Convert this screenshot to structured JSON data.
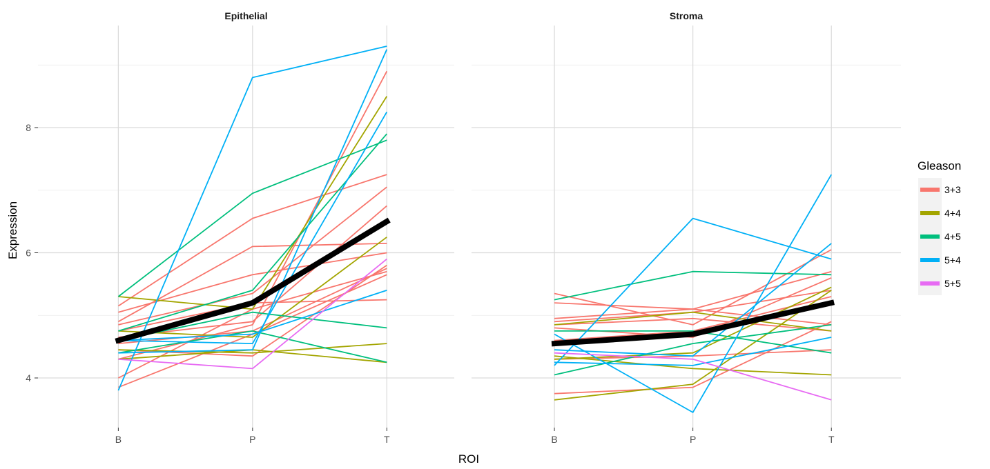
{
  "chart_data": {
    "type": "line",
    "xlabel": "ROI",
    "ylabel": "Expression",
    "categories": [
      "B",
      "P",
      "T"
    ],
    "ylim": [
      3.2,
      9.6
    ],
    "yticks": [
      4,
      6,
      8
    ],
    "grid": true,
    "legend": {
      "title": "Gleason",
      "position": "right",
      "entries": [
        {
          "label": "3+3",
          "color": "#F8766D"
        },
        {
          "label": "4+4",
          "color": "#A3A500"
        },
        {
          "label": "4+5",
          "color": "#00BF7D"
        },
        {
          "label": "5+4",
          "color": "#00B0F6"
        },
        {
          "label": "5+5",
          "color": "#E76BF3"
        }
      ]
    },
    "mean_color": "#000000",
    "facets": [
      {
        "title": "Epithelial",
        "series": [
          {
            "group": "3+3",
            "values": [
              5.15,
              6.55,
              7.25
            ]
          },
          {
            "group": "3+3",
            "values": [
              4.9,
              6.1,
              6.15
            ]
          },
          {
            "group": "3+3",
            "values": [
              5.05,
              5.65,
              6.0
            ]
          },
          {
            "group": "3+3",
            "values": [
              4.85,
              5.35,
              7.05
            ]
          },
          {
            "group": "3+3",
            "values": [
              4.75,
              5.2,
              5.25
            ]
          },
          {
            "group": "3+3",
            "values": [
              4.65,
              4.9,
              6.75
            ]
          },
          {
            "group": "3+3",
            "values": [
              4.55,
              4.75,
              5.75
            ]
          },
          {
            "group": "3+3",
            "values": [
              4.3,
              4.85,
              8.9
            ]
          },
          {
            "group": "3+3",
            "values": [
              4.0,
              5.1,
              5.7
            ]
          },
          {
            "group": "3+3",
            "values": [
              3.85,
              4.7,
              5.65
            ]
          },
          {
            "group": "3+3",
            "values": [
              4.45,
              4.35,
              5.8
            ]
          },
          {
            "group": "4+4",
            "values": [
              5.3,
              5.1,
              8.5
            ]
          },
          {
            "group": "4+4",
            "values": [
              4.75,
              4.65,
              6.25
            ]
          },
          {
            "group": "4+4",
            "values": [
              4.45,
              4.4,
              4.55
            ]
          },
          {
            "group": "4+4",
            "values": [
              4.3,
              4.45,
              4.25
            ]
          },
          {
            "group": "4+5",
            "values": [
              5.3,
              6.95,
              7.8
            ]
          },
          {
            "group": "4+5",
            "values": [
              4.75,
              5.4,
              7.9
            ]
          },
          {
            "group": "4+5",
            "values": [
              4.6,
              5.05,
              4.8
            ]
          },
          {
            "group": "4+5",
            "values": [
              4.4,
              4.75,
              4.25
            ]
          },
          {
            "group": "5+4",
            "values": [
              3.8,
              8.8,
              9.3
            ]
          },
          {
            "group": "5+4",
            "values": [
              4.6,
              4.55,
              8.25
            ]
          },
          {
            "group": "5+4",
            "values": [
              4.6,
              4.7,
              5.4
            ]
          },
          {
            "group": "5+4",
            "values": [
              4.4,
              4.45,
              9.25
            ]
          },
          {
            "group": "5+5",
            "values": [
              4.3,
              4.15,
              5.9
            ]
          }
        ],
        "mean": [
          4.6,
          5.2,
          6.5
        ]
      },
      {
        "title": "Stroma",
        "series": [
          {
            "group": "3+3",
            "values": [
              5.35,
              4.85,
              6.05
            ]
          },
          {
            "group": "3+3",
            "values": [
              5.2,
              5.1,
              4.85
            ]
          },
          {
            "group": "3+3",
            "values": [
              4.95,
              5.1,
              5.7
            ]
          },
          {
            "group": "3+3",
            "values": [
              4.9,
              5.05,
              5.4
            ]
          },
          {
            "group": "3+3",
            "values": [
              4.85,
              4.95,
              4.75
            ]
          },
          {
            "group": "3+3",
            "values": [
              4.8,
              4.65,
              5.6
            ]
          },
          {
            "group": "3+3",
            "values": [
              4.6,
              4.75,
              5.3
            ]
          },
          {
            "group": "3+3",
            "values": [
              4.3,
              4.35,
              4.45
            ]
          },
          {
            "group": "3+3",
            "values": [
              3.75,
              3.85,
              4.9
            ]
          },
          {
            "group": "4+4",
            "values": [
              4.85,
              5.05,
              4.75
            ]
          },
          {
            "group": "4+4",
            "values": [
              4.35,
              4.15,
              4.05
            ]
          },
          {
            "group": "4+4",
            "values": [
              4.3,
              4.4,
              5.45
            ]
          },
          {
            "group": "4+4",
            "values": [
              3.65,
              3.9,
              5.4
            ]
          },
          {
            "group": "4+5",
            "values": [
              5.25,
              5.7,
              5.65
            ]
          },
          {
            "group": "4+5",
            "values": [
              4.75,
              4.75,
              4.4
            ]
          },
          {
            "group": "4+5",
            "values": [
              4.05,
              4.55,
              4.85
            ]
          },
          {
            "group": "5+4",
            "values": [
              4.2,
              6.55,
              5.9
            ]
          },
          {
            "group": "5+4",
            "values": [
              4.7,
              3.45,
              7.25
            ]
          },
          {
            "group": "5+4",
            "values": [
              4.45,
              4.35,
              6.15
            ]
          },
          {
            "group": "5+4",
            "values": [
              4.25,
              4.2,
              4.65
            ]
          },
          {
            "group": "5+5",
            "values": [
              4.4,
              4.3,
              3.65
            ]
          }
        ],
        "mean": [
          4.55,
          4.7,
          5.2
        ]
      }
    ]
  }
}
